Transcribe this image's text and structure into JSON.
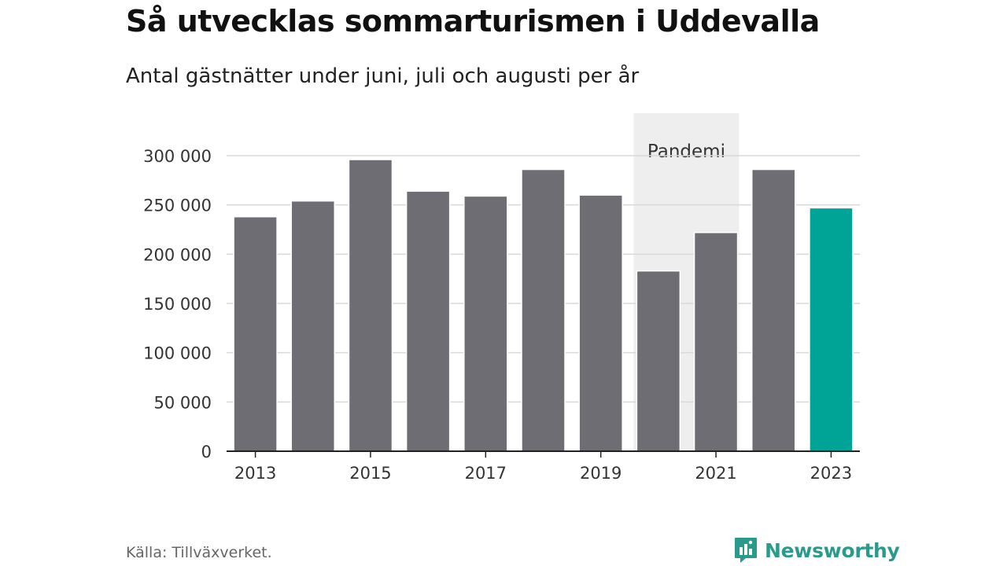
{
  "title": "Så utvecklas sommarturismen i Uddevalla",
  "subtitle": "Antal gästnätter under juni, juli och augusti per år",
  "source": "Källa: Tillväxverket.",
  "brand": {
    "name": "Newsworthy",
    "color": "#2a9a8c",
    "icon": "chart-bubble-icon"
  },
  "chart_data": {
    "type": "bar",
    "title": "Så utvecklas sommarturismen i Uddevalla",
    "subtitle": "Antal gästnätter under juni, juli och augusti per år",
    "categories": [
      "2013",
      "2014",
      "2015",
      "2016",
      "2017",
      "2018",
      "2019",
      "2020",
      "2021",
      "2022",
      "2023"
    ],
    "values": [
      238000,
      254000,
      296000,
      264000,
      259000,
      286000,
      260000,
      183000,
      222000,
      286000,
      247000
    ],
    "ylim": [
      0,
      300000
    ],
    "yticks": [
      0,
      50000,
      100000,
      150000,
      200000,
      250000,
      300000
    ],
    "ytick_labels": [
      "0",
      "50 000",
      "100 000",
      "150 000",
      "200 000",
      "250 000",
      "300 000"
    ],
    "xtick_labels": [
      "2013",
      "2015",
      "2017",
      "2019",
      "2021",
      "2023"
    ],
    "grid": true,
    "bar_color": "#6e6d74",
    "highlight_color": "#00a497",
    "highlight_category": "2023",
    "annotation": {
      "label": "Pandemi",
      "from": "2020",
      "to": "2021",
      "color": "#eeeeee"
    }
  }
}
